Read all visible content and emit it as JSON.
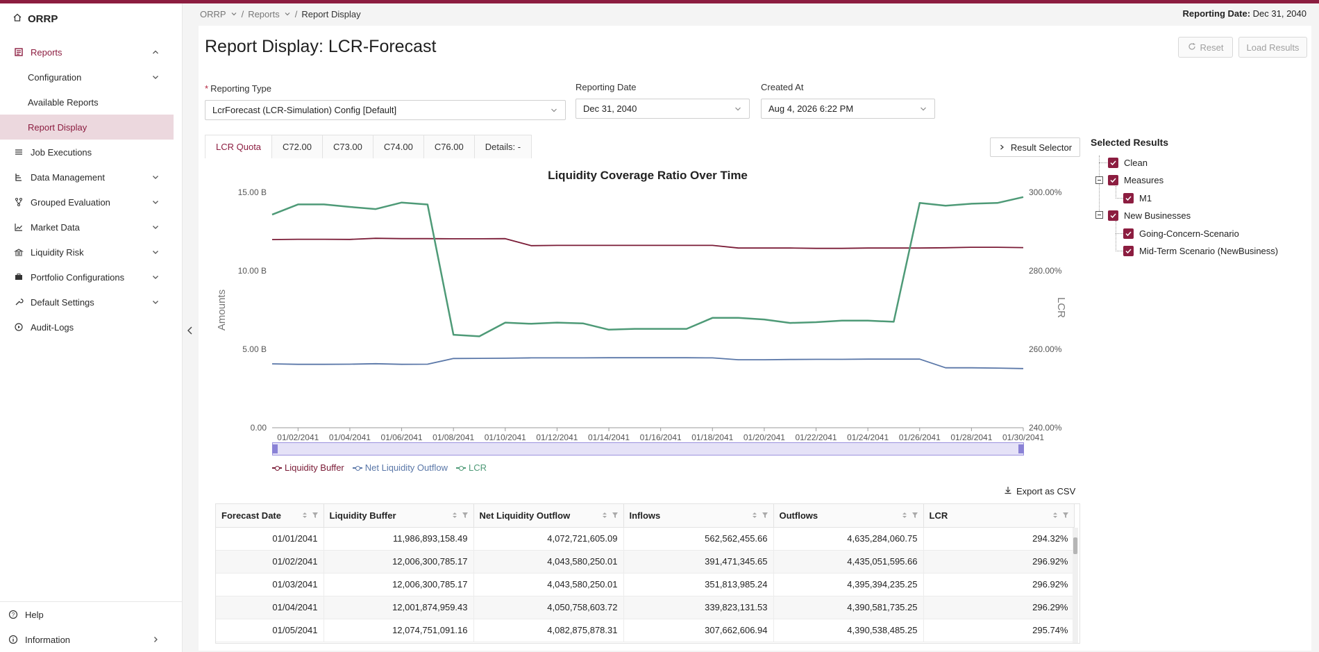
{
  "app": {
    "name": "ORRP"
  },
  "header": {
    "breadcrumb": [
      "ORRP",
      "Reports",
      "Report Display"
    ],
    "reporting_date_label": "Reporting Date:",
    "reporting_date_value": "Dec 31, 2040"
  },
  "sidebar": {
    "reports_label": "Reports",
    "sub_items": [
      "Configuration",
      "Available Reports",
      "Report Display"
    ],
    "items": [
      {
        "label": "Job Executions",
        "icon": "list-icon"
      },
      {
        "label": "Data Management",
        "icon": "database-icon"
      },
      {
        "label": "Grouped Evaluation",
        "icon": "branch-icon"
      },
      {
        "label": "Market Data",
        "icon": "line-chart-icon"
      },
      {
        "label": "Liquidity Risk",
        "icon": "bank-icon"
      },
      {
        "label": "Portfolio Configurations",
        "icon": "portfolio-icon"
      },
      {
        "label": "Default Settings",
        "icon": "wrench-icon"
      },
      {
        "label": "Audit-Logs",
        "icon": "audit-icon"
      }
    ],
    "footer": [
      "Help",
      "Information"
    ]
  },
  "page": {
    "title": "Report Display: LCR-Forecast",
    "reset_label": "Reset",
    "load_label": "Load Results"
  },
  "filters": {
    "reporting_type_label": "Reporting Type",
    "reporting_type_value": "LcrForecast (LCR-Simulation) Config [Default]",
    "reporting_date_label": "Reporting Date",
    "reporting_date_value": "Dec 31, 2040",
    "created_at_label": "Created At",
    "created_at_value": "Aug 4, 2026 6:22 PM"
  },
  "tabs": [
    "LCR Quota",
    "C72.00",
    "C73.00",
    "C74.00",
    "C76.00",
    "Details: -"
  ],
  "result_selector_label": "Result Selector",
  "selected_results": {
    "title": "Selected Results",
    "nodes": [
      "Clean",
      "Measures",
      "M1",
      "New Businesses",
      "Going-Concern-Scenario",
      "Mid-Term Scenario (NewBusiness)"
    ]
  },
  "chart_data": {
    "type": "line",
    "title": "Liquidity Coverage Ratio Over Time",
    "ylabel": "Amounts",
    "y2label": "LCR",
    "ylim": [
      0,
      15000000000
    ],
    "y2lim": [
      240,
      300
    ],
    "y_ticks": [
      "0.00",
      "5.00 B",
      "10.00 B",
      "15.00 B"
    ],
    "y2_ticks": [
      "240.00%",
      "260.00%",
      "280.00%",
      "300.00%"
    ],
    "x_ticks": [
      "01/02/2041",
      "01/04/2041",
      "01/06/2041",
      "01/08/2041",
      "01/10/2041",
      "01/12/2041",
      "01/14/2041",
      "01/16/2041",
      "01/18/2041",
      "01/20/2041",
      "01/22/2041",
      "01/24/2041",
      "01/26/2041",
      "01/28/2041",
      "01/30/2041"
    ],
    "x_count": 30,
    "series": [
      {
        "name": "Liquidity Buffer",
        "axis": "left",
        "color": "#7a1b36",
        "values": [
          11.99,
          12.01,
          12.01,
          12.0,
          12.07,
          12.05,
          12.05,
          12.04,
          12.04,
          12.05,
          11.6,
          11.62,
          11.62,
          11.62,
          11.62,
          11.62,
          11.62,
          11.62,
          11.45,
          11.45,
          11.45,
          11.43,
          11.43,
          11.45,
          11.45,
          11.45,
          11.47,
          11.5,
          11.5,
          11.48
        ]
      },
      {
        "name": "Net Liquidity Outflow",
        "axis": "left",
        "color": "#5a77a8",
        "values": [
          4.07,
          4.04,
          4.04,
          4.05,
          4.08,
          4.04,
          4.05,
          4.41,
          4.42,
          4.43,
          4.45,
          4.45,
          4.45,
          4.46,
          4.46,
          4.46,
          4.46,
          4.45,
          4.33,
          4.33,
          4.35,
          4.36,
          4.36,
          4.37,
          4.37,
          4.37,
          3.82,
          3.82,
          3.8,
          3.77
        ]
      },
      {
        "name": "LCR",
        "axis": "right",
        "color": "#4e9a77",
        "values": [
          294.32,
          296.92,
          296.92,
          296.29,
          295.74,
          297.4,
          296.9,
          263.7,
          263.3,
          266.8,
          266.5,
          266.8,
          266.6,
          265.0,
          265.2,
          265.2,
          265.2,
          268.0,
          268.0,
          267.6,
          266.7,
          266.9,
          267.3,
          267.3,
          267.0,
          297.3,
          296.6,
          297.1,
          297.3,
          298.8
        ]
      }
    ],
    "legend": "bottom-left"
  },
  "export_label": "Export as CSV",
  "table": {
    "columns": [
      "Forecast Date",
      "Liquidity Buffer",
      "Net Liquidity Outflow",
      "Inflows",
      "Outflows",
      "LCR"
    ],
    "rows": [
      [
        "01/01/2041",
        "11,986,893,158.49",
        "4,072,721,605.09",
        "562,562,455.66",
        "4,635,284,060.75",
        "294.32%"
      ],
      [
        "01/02/2041",
        "12,006,300,785.17",
        "4,043,580,250.01",
        "391,471,345.65",
        "4,435,051,595.66",
        "296.92%"
      ],
      [
        "01/03/2041",
        "12,006,300,785.17",
        "4,043,580,250.01",
        "351,813,985.24",
        "4,395,394,235.25",
        "296.92%"
      ],
      [
        "01/04/2041",
        "12,001,874,959.43",
        "4,050,758,603.72",
        "339,823,131.53",
        "4,390,581,735.25",
        "296.29%"
      ],
      [
        "01/05/2041",
        "12,074,751,091.16",
        "4,082,875,878.31",
        "307,662,606.94",
        "4,390,538,485.25",
        "295.74%"
      ]
    ]
  }
}
